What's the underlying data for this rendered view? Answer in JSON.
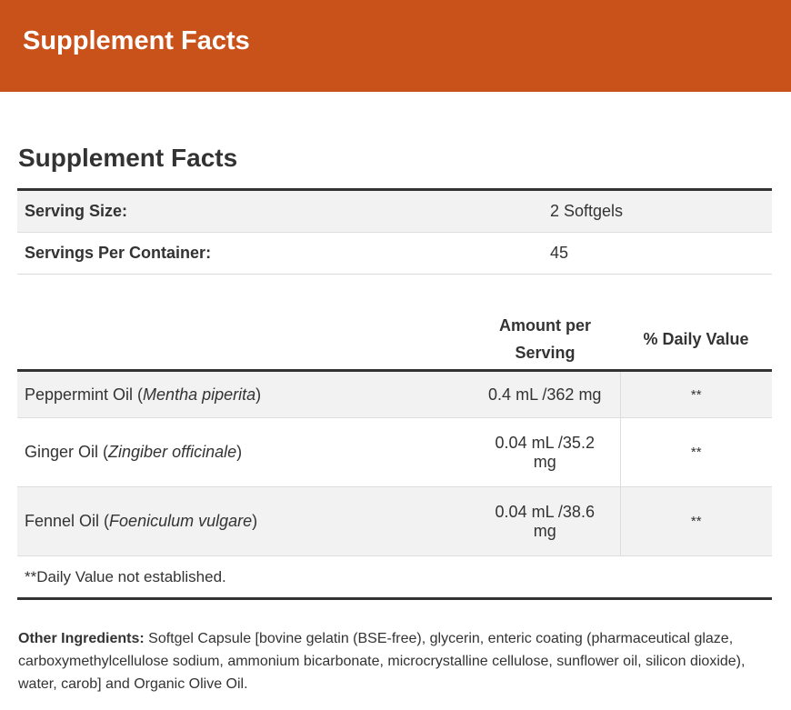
{
  "header": {
    "title": "Supplement Facts"
  },
  "heading": "Supplement Facts",
  "serving": [
    [
      "Serving Size:",
      "2 Softgels"
    ],
    [
      "Servings Per Container:",
      "45"
    ]
  ],
  "table": {
    "columns": [
      "",
      "Amount per Serving",
      "% Daily Value"
    ],
    "rows": [
      {
        "name": [
          "Peppermint Oil (",
          "Mentha piperita",
          ")"
        ],
        "amount": "0.4 mL /362 mg",
        "dv": "**"
      },
      {
        "name": [
          "Ginger Oil (",
          "Zingiber officinale",
          ")"
        ],
        "amount": "0.04 mL /35.2 mg",
        "dv": "**"
      },
      {
        "name": [
          "Fennel Oil (",
          "Foeniculum vulgare",
          ")"
        ],
        "amount": "0.04 mL /38.6 mg",
        "dv": "**"
      }
    ],
    "footnote": "**Daily Value not established."
  },
  "other_ingredients": {
    "label": "Other Ingredients:",
    "text": "Softgel Capsule [bovine gelatin (BSE-free), glycerin, enteric coating (pharmaceutical glaze, carboxymethylcellulose sodium, ammonium bicarbonate, microcrystalline cellulose, sunflower oil, silicon dioxide), water, carob] and Organic Olive Oil."
  }
}
